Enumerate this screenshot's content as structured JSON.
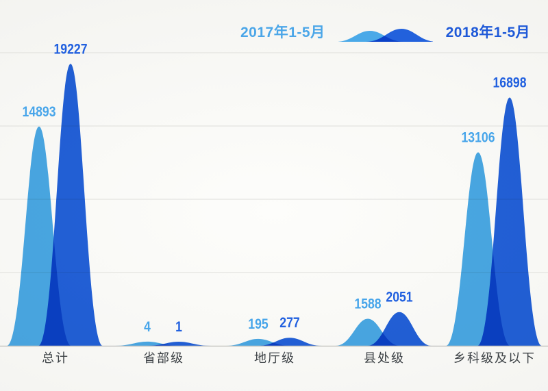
{
  "chart_data": {
    "type": "area",
    "title": "",
    "categories": [
      "总计",
      "省部级",
      "地厅级",
      "县处级",
      "乡科级及以下"
    ],
    "series": [
      {
        "name": "2017年1-5月",
        "values": [
          14893,
          4,
          195,
          1588,
          13106
        ],
        "color": "#4AA9E8",
        "label_color": "#47A5EA"
      },
      {
        "name": "2018年1-5月",
        "values": [
          19227,
          1,
          277,
          2051,
          16898
        ],
        "color": "#2261DC",
        "label_color": "#2160DF"
      }
    ],
    "ylim": [
      0,
      20000
    ],
    "gridline_values": [
      0,
      5000,
      10000,
      15000,
      20000
    ],
    "grid": true,
    "legend_position": "top",
    "overlap_blend": "multiply",
    "gridline_color": "#DEDEDA",
    "baseline_color": "#C6C6C2",
    "category_label_color": "#3C4145"
  }
}
